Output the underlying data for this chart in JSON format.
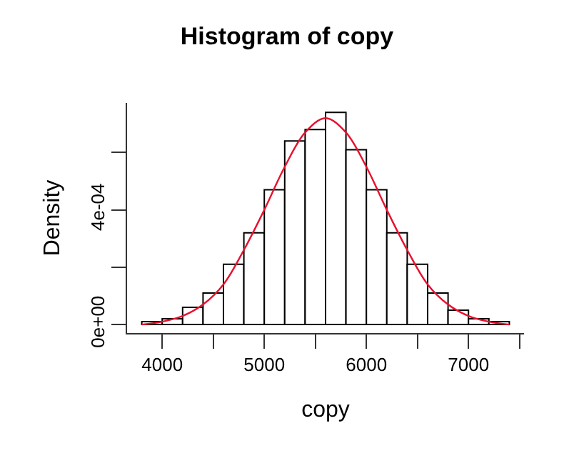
{
  "chart_data": {
    "type": "histogram",
    "title": "Histogram of copy",
    "xlabel": "copy",
    "ylabel": "Density",
    "series": [
      {
        "type": "histogram",
        "color": "#ffffff",
        "bins": [
          3800,
          4000,
          4200,
          4400,
          4600,
          4800,
          5000,
          5200,
          5400,
          5600,
          5800,
          6000,
          6200,
          6400,
          6600,
          6800,
          7000,
          7200,
          7400
        ],
        "values": [
          1e-05,
          2e-05,
          6e-05,
          0.00011,
          0.00021,
          0.00032,
          0.00047,
          0.00064,
          0.00068,
          0.00074,
          0.00061,
          0.00047,
          0.00032,
          0.00021,
          0.00011,
          5e-05,
          2e-05,
          1e-05
        ]
      },
      {
        "type": "line",
        "color": "#e8102e",
        "x": [
          3800,
          4000,
          4200,
          4400,
          4600,
          4800,
          5000,
          5200,
          5400,
          5600,
          5800,
          6000,
          6200,
          6400,
          6600,
          6800,
          7000,
          7200,
          7400
        ],
        "values": [
          0,
          1e-05,
          3e-05,
          7e-05,
          0.00014,
          0.00026,
          0.0004,
          0.00055,
          0.00067,
          0.00072,
          0.00067,
          0.00055,
          0.0004,
          0.00026,
          0.00014,
          7e-05,
          3e-05,
          1e-05,
          0
        ]
      }
    ],
    "xlim": [
      3656,
      7544
    ],
    "xticks": [
      4000,
      {
        "value": 4500,
        "label": null
      },
      5000,
      {
        "value": 5500,
        "label": null
      },
      6000,
      {
        "value": 6500,
        "label": null
      },
      7000,
      {
        "value": 7500,
        "label": null
      }
    ],
    "ylim": [
      -2.97e-05,
      0.000773
    ],
    "yticks": [
      {
        "value": 0,
        "label": "0e+00"
      },
      {
        "value": 0.0002,
        "label": null
      },
      {
        "value": 0.0004,
        "label": "4e-04"
      },
      {
        "value": 0.0006,
        "label": null
      }
    ],
    "grid": false
  }
}
